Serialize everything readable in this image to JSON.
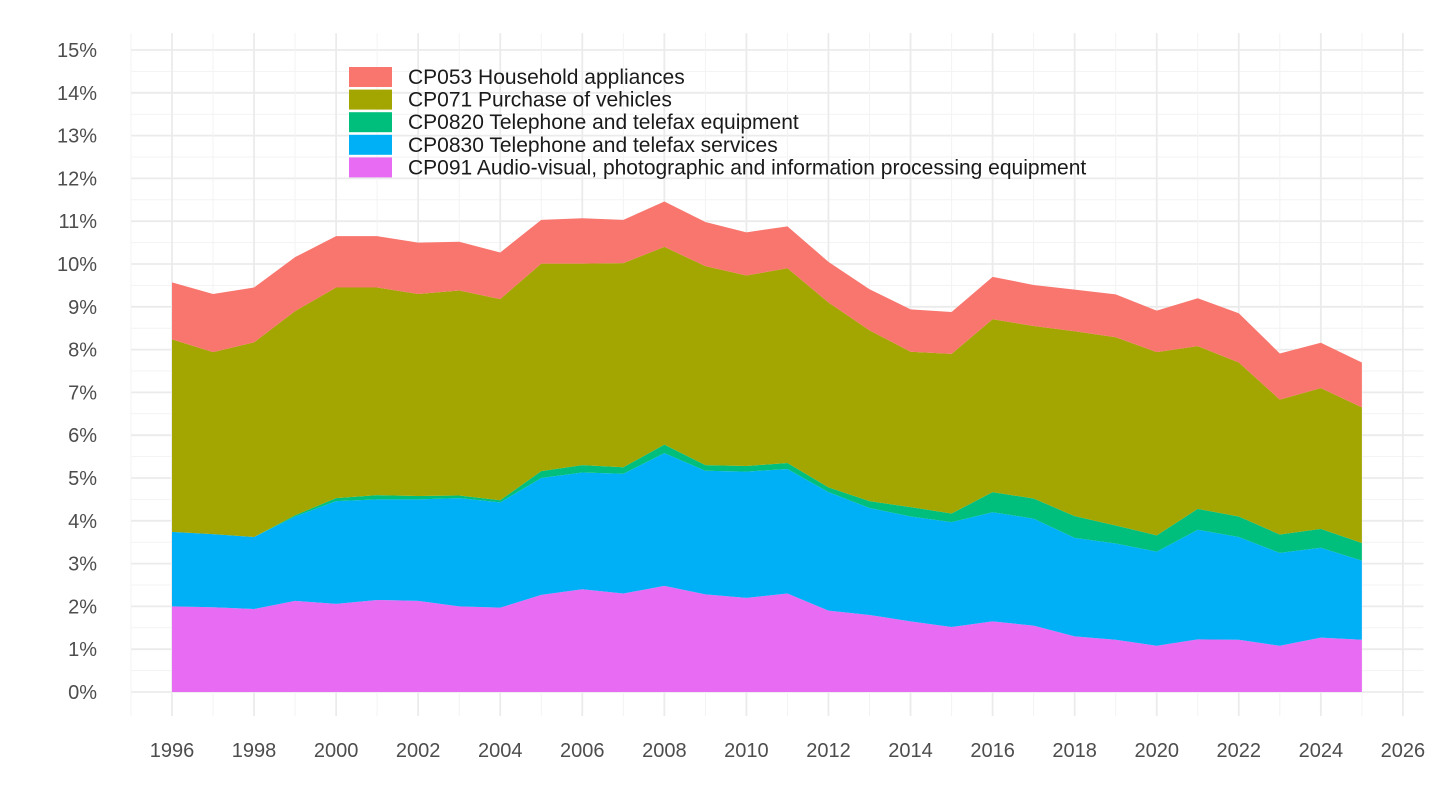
{
  "chart_data": {
    "type": "area",
    "stacked": true,
    "title": "",
    "xlabel": "",
    "ylabel": "",
    "x": [
      1996,
      1997,
      1998,
      1999,
      2000,
      2001,
      2002,
      2003,
      2004,
      2005,
      2006,
      2007,
      2008,
      2009,
      2010,
      2011,
      2012,
      2013,
      2014,
      2015,
      2016,
      2017,
      2018,
      2019,
      2020,
      2021,
      2022,
      2023,
      2024,
      2025
    ],
    "xlim": [
      1995,
      2026
    ],
    "ylim": [
      0,
      15.3
    ],
    "x_ticks": [
      1996,
      1998,
      2000,
      2002,
      2004,
      2006,
      2008,
      2010,
      2012,
      2014,
      2016,
      2018,
      2020,
      2022,
      2024,
      2026
    ],
    "y_ticks": [
      0,
      1,
      2,
      3,
      4,
      5,
      6,
      7,
      8,
      9,
      10,
      11,
      12,
      13,
      14,
      15
    ],
    "y_tick_format": "%",
    "grid": true,
    "legend_position": "top-left, inside plot",
    "series": [
      {
        "name": "CP091 Audio-visual, photographic and information processing equipment",
        "color": "#E76BF3",
        "values": [
          2.0,
          1.98,
          1.94,
          2.13,
          2.06,
          2.15,
          2.13,
          2.0,
          1.97,
          2.27,
          2.4,
          2.3,
          2.48,
          2.28,
          2.2,
          2.3,
          1.9,
          1.8,
          1.65,
          1.52,
          1.65,
          1.55,
          1.3,
          1.22,
          1.08,
          1.23,
          1.22,
          1.08,
          1.27,
          1.22
        ]
      },
      {
        "name": "CP0830 Telephone and telefax services",
        "color": "#00B0F6",
        "values": [
          1.74,
          1.71,
          1.68,
          1.97,
          2.4,
          2.35,
          2.37,
          2.53,
          2.46,
          2.73,
          2.73,
          2.8,
          3.1,
          2.89,
          2.95,
          2.91,
          2.77,
          2.5,
          2.45,
          2.45,
          2.55,
          2.5,
          2.3,
          2.25,
          2.2,
          2.56,
          2.4,
          2.17,
          2.1,
          1.85
        ]
      },
      {
        "name": "CP0820 Telephone and telefax equipment",
        "color": "#00BF7D",
        "values": [
          0.0,
          0.0,
          0.0,
          0.03,
          0.07,
          0.1,
          0.08,
          0.06,
          0.05,
          0.16,
          0.17,
          0.15,
          0.2,
          0.13,
          0.13,
          0.14,
          0.11,
          0.16,
          0.22,
          0.2,
          0.47,
          0.47,
          0.51,
          0.42,
          0.38,
          0.49,
          0.48,
          0.43,
          0.44,
          0.41
        ]
      },
      {
        "name": "CP071 Purchase of vehicles",
        "color": "#A3A500",
        "values": [
          4.5,
          4.25,
          4.55,
          4.77,
          4.92,
          4.85,
          4.72,
          4.79,
          4.7,
          4.85,
          4.71,
          4.77,
          4.62,
          4.65,
          4.45,
          4.55,
          4.32,
          3.99,
          3.63,
          3.73,
          4.04,
          4.03,
          4.32,
          4.4,
          4.28,
          3.8,
          3.6,
          3.15,
          3.29,
          3.17
        ]
      },
      {
        "name": "CP053 Household appliances",
        "color": "#F8766D",
        "values": [
          1.33,
          1.36,
          1.28,
          1.26,
          1.2,
          1.2,
          1.2,
          1.14,
          1.09,
          1.02,
          1.06,
          1.01,
          1.06,
          1.03,
          1.01,
          0.98,
          0.95,
          0.96,
          0.99,
          0.98,
          0.99,
          0.96,
          0.97,
          1.0,
          0.97,
          1.12,
          1.15,
          1.08,
          1.06,
          1.05
        ]
      }
    ],
    "legend_order": [
      "CP053 Household appliances",
      "CP071 Purchase of vehicles",
      "CP0820 Telephone and telefax equipment",
      "CP0830 Telephone and telefax services",
      "CP091 Audio-visual, photographic and information processing equipment"
    ]
  }
}
